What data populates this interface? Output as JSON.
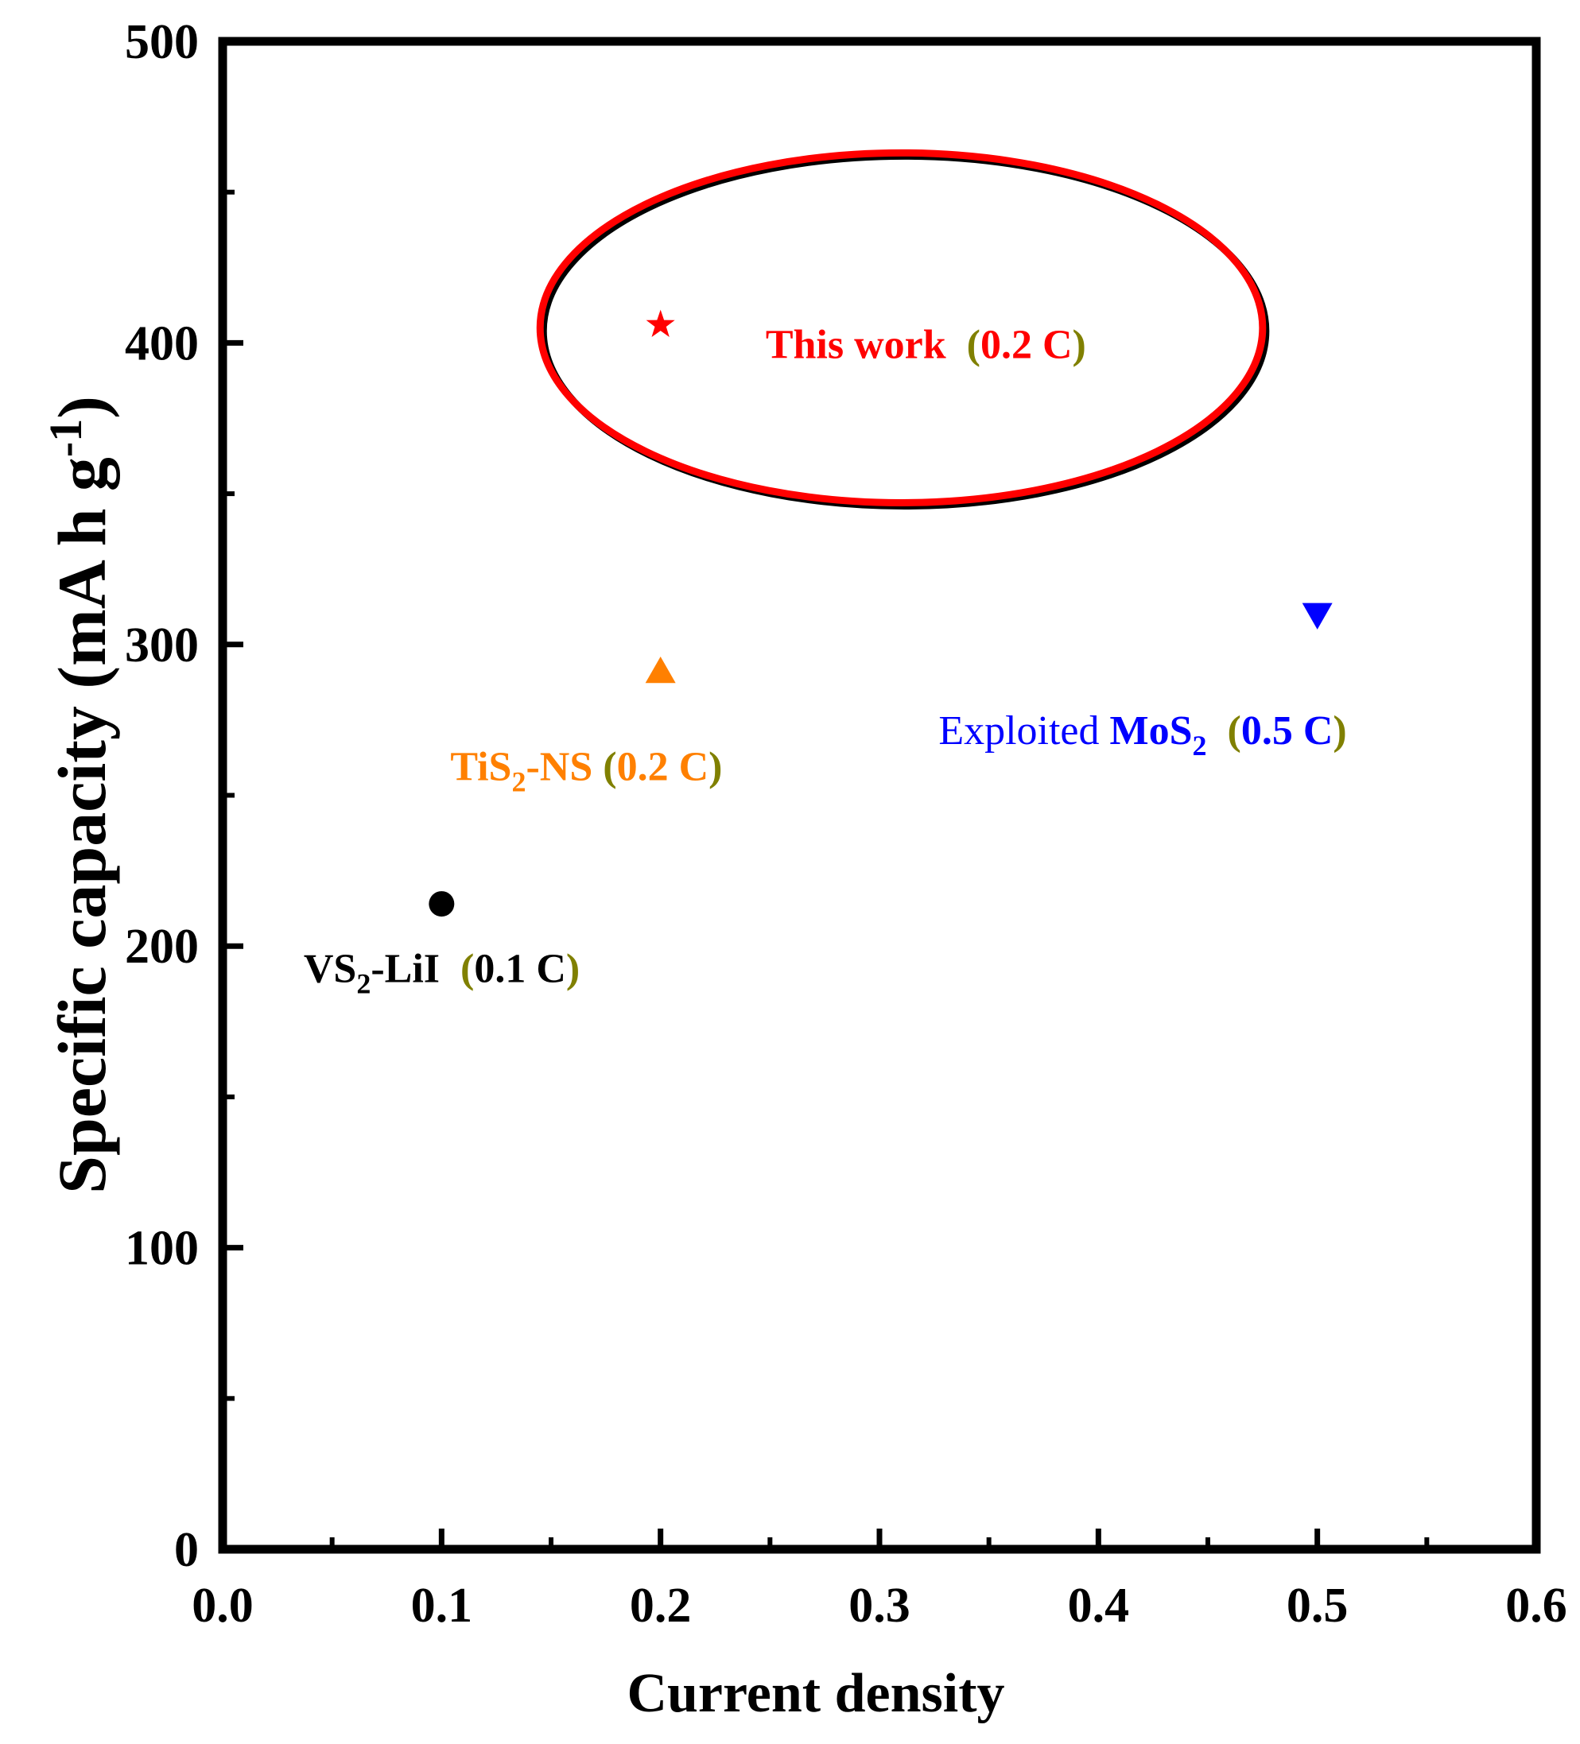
{
  "chart_data": {
    "type": "scatter",
    "title": "",
    "xlabel": "Current density",
    "ylabel": {
      "main": "Specific capacity (mA h g",
      "sup": "-1",
      "close": ")"
    },
    "xlim": [
      0.0,
      0.6
    ],
    "ylim": [
      0,
      500
    ],
    "x_ticks": [
      {
        "value": 0.0,
        "label": "0.0"
      },
      {
        "value": 0.1,
        "label": "0.1"
      },
      {
        "value": 0.2,
        "label": "0.2"
      },
      {
        "value": 0.3,
        "label": "0.3"
      },
      {
        "value": 0.4,
        "label": "0.4"
      },
      {
        "value": 0.5,
        "label": "0.5"
      },
      {
        "value": 0.6,
        "label": "0.6"
      }
    ],
    "y_ticks": [
      {
        "value": 0,
        "label": "0"
      },
      {
        "value": 100,
        "label": "100"
      },
      {
        "value": 200,
        "label": "200"
      },
      {
        "value": 300,
        "label": "300"
      },
      {
        "value": 400,
        "label": "400"
      },
      {
        "value": 500,
        "label": "500"
      }
    ],
    "x_minor_ticks": [
      0.05,
      0.15,
      0.25,
      0.35,
      0.45,
      0.55
    ],
    "y_minor_ticks": [
      50,
      150,
      250,
      350,
      450
    ],
    "grid": false,
    "series": [
      {
        "marker": "circle",
        "color": "#000000",
        "x": 0.1,
        "y": 214
      },
      {
        "marker": "triangle-up",
        "color": "#ff8000",
        "x": 0.2,
        "y": 291
      },
      {
        "marker": "star",
        "color": "#ff0000",
        "x": 0.2,
        "y": 406
      },
      {
        "marker": "triangle-down",
        "color": "#0000ff",
        "x": 0.5,
        "y": 310
      }
    ],
    "highlight_ellipse": {
      "center_x": 0.31,
      "center_y": 405,
      "radius_x": 0.165,
      "radius_y": 58,
      "color": "#ff0000"
    },
    "annotations": [
      {
        "anchor_x": 0.037,
        "anchor_y": 188,
        "parts": [
          {
            "text": "VS",
            "color": "#000000",
            "weight": "bold"
          },
          {
            "text": "2",
            "color": "#000000",
            "weight": "bold",
            "sub": true
          },
          {
            "text": "-LiI",
            "color": "#000000",
            "weight": "bold"
          },
          {
            "text": "  (",
            "color": "#808000",
            "weight": "bold"
          },
          {
            "text": "0.1 C",
            "color": "#000000",
            "weight": "bold"
          },
          {
            "text": ")",
            "color": "#808000",
            "weight": "bold"
          }
        ]
      },
      {
        "anchor_x": 0.104,
        "anchor_y": 255,
        "parts": [
          {
            "text": "TiS",
            "color": "#ff8000",
            "weight": "bold"
          },
          {
            "text": "2",
            "color": "#ff8000",
            "weight": "bold",
            "sub": true
          },
          {
            "text": "-NS",
            "color": "#ff8000",
            "weight": "bold"
          },
          {
            "text": " (",
            "color": "#808000",
            "weight": "bold"
          },
          {
            "text": "0.2 C",
            "color": "#ff8000",
            "weight": "bold"
          },
          {
            "text": ")",
            "color": "#808000",
            "weight": "bold"
          }
        ]
      },
      {
        "anchor_x": 0.248,
        "anchor_y": 395,
        "parts": [
          {
            "text": "This work",
            "color": "#ff0000",
            "weight": "bold"
          },
          {
            "text": "  (",
            "color": "#808000",
            "weight": "bold"
          },
          {
            "text": "0.2 C",
            "color": "#ff0000",
            "weight": "bold"
          },
          {
            "text": ")",
            "color": "#808000",
            "weight": "bold"
          }
        ]
      },
      {
        "anchor_x": 0.327,
        "anchor_y": 267,
        "parts": [
          {
            "text": "Exploited ",
            "color": "#0000ff",
            "weight": "normal"
          },
          {
            "text": "MoS",
            "color": "#0000ff",
            "weight": "bold"
          },
          {
            "text": "2",
            "color": "#0000ff",
            "weight": "bold",
            "sub": true
          },
          {
            "text": "  (",
            "color": "#808000",
            "weight": "bold"
          },
          {
            "text": "0.5 C",
            "color": "#0000ff",
            "weight": "bold"
          },
          {
            "text": ")",
            "color": "#808000",
            "weight": "bold"
          }
        ]
      }
    ]
  }
}
